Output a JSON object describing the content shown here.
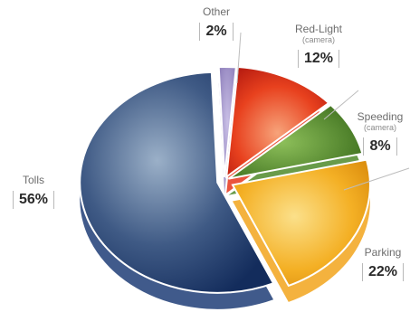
{
  "chart_data": {
    "type": "pie",
    "style": "3d-exploded",
    "categories": [
      "Tolls",
      "Other",
      "Red-Light",
      "Speeding",
      "Parking"
    ],
    "values": [
      56,
      2,
      12,
      8,
      22
    ],
    "value_labels": [
      "56%",
      "2%",
      "12%",
      "8%",
      "22%"
    ],
    "sublabels": [
      "",
      "",
      "(camera)",
      "(camera)",
      ""
    ],
    "colors": [
      "#1f3d77",
      "#9a8cc4",
      "#e6361c",
      "#4f8a2a",
      "#f2a51c"
    ],
    "legend": "none"
  }
}
